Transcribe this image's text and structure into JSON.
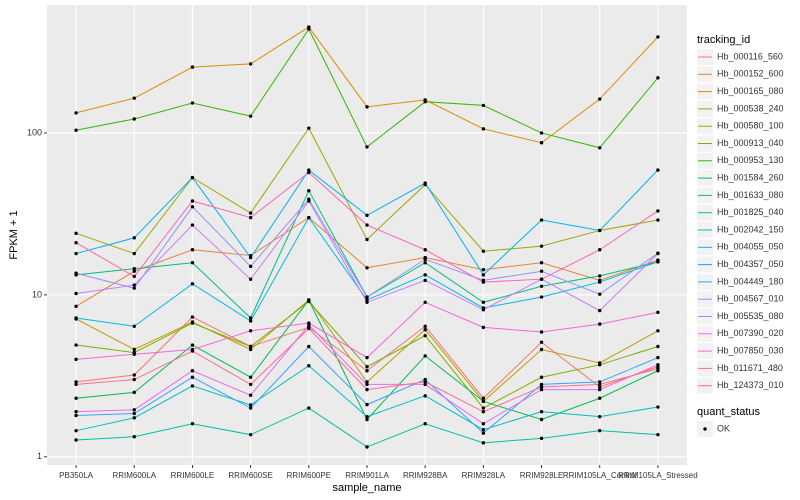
{
  "chart_data": {
    "type": "line",
    "x_label": "sample_name",
    "y_label": "FPKM + 1",
    "y_scale": "log",
    "grid": true,
    "categories": [
      "PB350LA",
      "RRIM600LA",
      "RRIM600LE",
      "RRIM600SE",
      "RRIM600PE",
      "RRIM901LA",
      "RRIM928BA",
      "RRIM928LA",
      "RRIM928LE",
      "RRIM105LA_Control",
      "RRIM105LA_Stressed"
    ],
    "ylim": [
      0.89,
      617
    ],
    "yticks": [
      1,
      10,
      100
    ],
    "legend_title": "tracking_id",
    "series": [
      {
        "name": "Hb_000116_560",
        "color": "#F8766D",
        "values": [
          2.9,
          3.2,
          7.3,
          4.8,
          6.3,
          3.4,
          6.4,
          2.3,
          5.1,
          2.7,
          3.6
        ]
      },
      {
        "name": "Hb_000152_600",
        "color": "#EA8331",
        "values": [
          8.5,
          14,
          19,
          17.5,
          30,
          14.7,
          17,
          14.3,
          15.8,
          12.3,
          16.4
        ]
      },
      {
        "name": "Hb_000165_080",
        "color": "#D89000",
        "values": [
          133,
          164,
          255,
          267,
          451,
          145,
          160,
          106,
          87,
          162,
          392
        ]
      },
      {
        "name": "Hb_000538_240",
        "color": "#C09B00",
        "values": [
          7.1,
          4.6,
          6.8,
          4.6,
          9.3,
          2.9,
          6.1,
          2.2,
          4.6,
          3.8,
          6.0
        ]
      },
      {
        "name": "Hb_000580_100",
        "color": "#A3A500",
        "values": [
          24,
          18,
          53,
          32,
          107,
          22,
          48,
          18.6,
          20,
          25,
          29
        ]
      },
      {
        "name": "Hb_000913_040",
        "color": "#7CAE00",
        "values": [
          4.9,
          4.4,
          6.7,
          4.8,
          9.1,
          3.6,
          5.6,
          2.0,
          3.1,
          3.7,
          4.8
        ]
      },
      {
        "name": "Hb_000953_130",
        "color": "#39B600",
        "values": [
          104,
          122,
          153,
          127,
          438,
          82,
          156,
          148,
          100,
          81,
          219
        ]
      },
      {
        "name": "Hb_001584_260",
        "color": "#00BB4E",
        "values": [
          2.3,
          2.5,
          4.9,
          3.1,
          9.3,
          1.7,
          4.2,
          2.2,
          1.7,
          2.3,
          3.4
        ]
      },
      {
        "name": "Hb_001633_080",
        "color": "#00BF7D",
        "values": [
          13.3,
          14.5,
          15.8,
          7.2,
          44,
          9.7,
          15.8,
          9.0,
          11.3,
          13.1,
          16.0
        ]
      },
      {
        "name": "Hb_001825_040",
        "color": "#00C1A3",
        "values": [
          1.27,
          1.33,
          1.6,
          1.37,
          2.0,
          1.15,
          1.6,
          1.22,
          1.3,
          1.45,
          1.37
        ]
      },
      {
        "name": "Hb_002042_150",
        "color": "#00BFC4",
        "values": [
          1.45,
          1.74,
          2.74,
          2.09,
          3.65,
          1.77,
          2.38,
          1.47,
          1.9,
          1.77,
          2.03
        ]
      },
      {
        "name": "Hb_004055_050",
        "color": "#00BAE0",
        "values": [
          7.2,
          6.4,
          11.7,
          6.9,
          30,
          9.3,
          13.3,
          8.3,
          9.7,
          12.0,
          16.0
        ]
      },
      {
        "name": "Hb_004357_050",
        "color": "#00B0F6",
        "values": [
          18,
          22.5,
          53,
          17,
          59,
          31,
          49,
          13.3,
          29,
          25,
          59
        ]
      },
      {
        "name": "Hb_004449_180",
        "color": "#35A2FF",
        "values": [
          1.8,
          1.85,
          3.1,
          2.0,
          4.8,
          2.1,
          3.0,
          1.4,
          2.8,
          2.9,
          4.1
        ]
      },
      {
        "name": "Hb_004567_010",
        "color": "#9590FF",
        "values": [
          13.6,
          11,
          35,
          15,
          39,
          9.7,
          16.6,
          12.3,
          14,
          10.1,
          18.1
        ]
      },
      {
        "name": "Hb_005535_080",
        "color": "#C77CFF",
        "values": [
          10.2,
          11.5,
          27,
          12.5,
          38,
          9.0,
          12.3,
          8.1,
          12.5,
          8.0,
          18
        ]
      },
      {
        "name": "Hb_007390_020",
        "color": "#E76BF3",
        "values": [
          1.9,
          1.95,
          3.4,
          2.4,
          6.5,
          2.8,
          2.8,
          1.6,
          2.6,
          2.6,
          3.7
        ]
      },
      {
        "name": "Hb_007850_030",
        "color": "#FA62DB",
        "values": [
          4.0,
          4.3,
          4.6,
          6.0,
          6.7,
          4.1,
          9.0,
          6.3,
          5.9,
          6.6,
          7.8
        ]
      },
      {
        "name": "Hb_011671_480",
        "color": "#FF62BC",
        "values": [
          21,
          13,
          38,
          30,
          57,
          27,
          19,
          12,
          12.5,
          19,
          33
        ]
      },
      {
        "name": "Hb_124373_010",
        "color": "#FF6C91",
        "values": [
          2.8,
          3.0,
          4.5,
          2.8,
          6.2,
          2.6,
          2.9,
          1.9,
          2.7,
          2.8,
          3.5
        ]
      }
    ],
    "point_legend": {
      "title": "quant_status",
      "labels": [
        "OK"
      ]
    }
  }
}
